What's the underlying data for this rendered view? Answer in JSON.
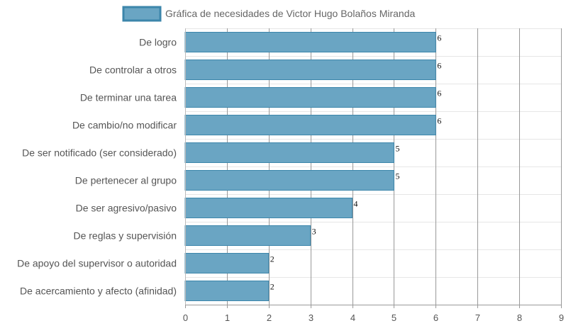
{
  "chart_data": {
    "type": "bar",
    "orientation": "horizontal",
    "legend": {
      "position": "top",
      "entries": [
        "Gráfica de necesidades de Victor Hugo Bolaños Miranda"
      ]
    },
    "series": [
      {
        "name": "Gráfica de necesidades de Victor Hugo Bolaños Miranda",
        "color": "#6AA5C3",
        "border_color": "#3C86AB"
      }
    ],
    "categories": [
      "De logro",
      "De controlar a otros",
      "De terminar una tarea",
      "De cambio/no modificar",
      "De ser notificado (ser considerado)",
      "De pertenecer al grupo",
      "De ser agresivo/pasivo",
      "De reglas y supervisión",
      "De apoyo del supervisor o autoridad",
      "De acercamiento y afecto (afinidad)"
    ],
    "values": [
      6,
      6,
      6,
      6,
      5,
      5,
      4,
      3,
      2,
      2
    ],
    "data_labels": [
      "6",
      "6",
      "6",
      "6",
      "5",
      "5",
      "4",
      "3",
      "2",
      "2"
    ],
    "xlim": [
      0,
      9
    ],
    "x_ticks": [
      "0",
      "1",
      "2",
      "3",
      "4",
      "5",
      "6",
      "7",
      "8",
      "9"
    ],
    "grid": true
  }
}
